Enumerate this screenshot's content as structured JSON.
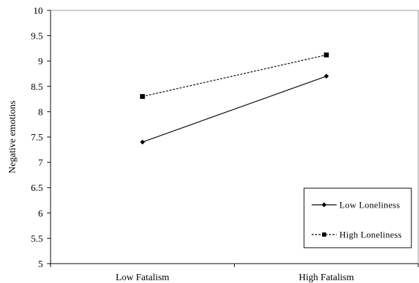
{
  "chart_data": {
    "type": "line",
    "title": "",
    "xlabel": "",
    "ylabel": "Negative emotions",
    "categories": [
      "Low Fatalism",
      "High Fatalism"
    ],
    "ylim": [
      5,
      10
    ],
    "yticks": [
      "5",
      "5.5",
      "6",
      "6.5",
      "7",
      "7.5",
      "8",
      "8.5",
      "9",
      "9.5",
      "10"
    ],
    "grid": false,
    "legend_position": "bottom-right",
    "series": [
      {
        "name": "Low Loneliness",
        "values": [
          7.4,
          8.7
        ],
        "marker": "diamond",
        "line_style": "solid",
        "color": "#000000"
      },
      {
        "name": "High Loneliness",
        "values": [
          8.3,
          9.12
        ],
        "marker": "square",
        "line_style": "dashed",
        "color": "#000000"
      }
    ]
  }
}
